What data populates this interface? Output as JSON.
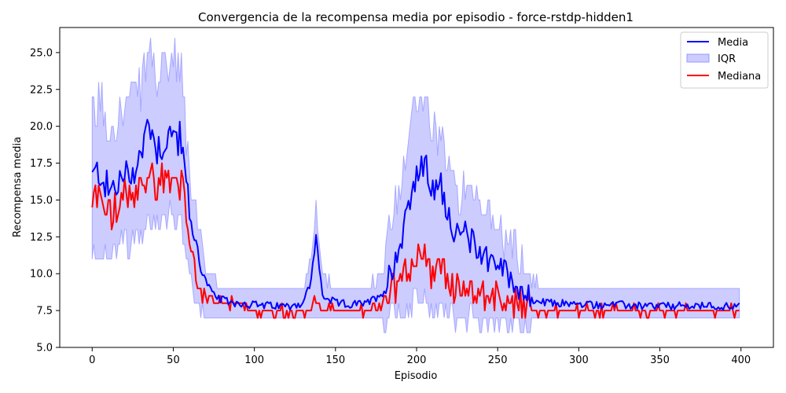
{
  "chart_data": {
    "type": "line",
    "title": "Convergencia de la recompensa media por episodio - force-rstdp-hidden1",
    "xlabel": "Episodio",
    "ylabel": "Recompensa media",
    "xlim": [
      -20,
      420
    ],
    "ylim": [
      5.0,
      26.7
    ],
    "x_ticks": [
      0,
      50,
      100,
      150,
      200,
      250,
      300,
      350,
      400
    ],
    "y_ticks": [
      5.0,
      7.5,
      10.0,
      12.5,
      15.0,
      17.5,
      20.0,
      22.5,
      25.0
    ],
    "grid": false,
    "legend_position": "top-right",
    "colors": {
      "media": "#0000ff",
      "iqr": "#ccccff",
      "iqr_edge": "#9999ff",
      "mediana": "#ff0000"
    },
    "legend": [
      "Media",
      "IQR",
      "Mediana"
    ],
    "keyframes": {
      "episodes": [
        0,
        5,
        10,
        15,
        20,
        25,
        30,
        35,
        40,
        45,
        50,
        55,
        60,
        65,
        70,
        75,
        80,
        90,
        100,
        110,
        120,
        130,
        135,
        138,
        142,
        150,
        160,
        170,
        180,
        185,
        190,
        195,
        200,
        205,
        210,
        215,
        220,
        225,
        230,
        235,
        240,
        245,
        250,
        255,
        260,
        265,
        270,
        280,
        290,
        300,
        320,
        340,
        360,
        380,
        400
      ],
      "media": [
        16.5,
        17.0,
        15.5,
        16.0,
        16.5,
        17.0,
        18.0,
        20.5,
        18.5,
        19.0,
        19.5,
        19.0,
        14.0,
        11.5,
        9.5,
        8.5,
        8.2,
        8.0,
        7.9,
        7.8,
        7.8,
        8.0,
        9.5,
        12.5,
        8.5,
        8.0,
        7.9,
        8.0,
        8.8,
        10.5,
        12.0,
        15.0,
        16.5,
        17.5,
        15.5,
        16.0,
        14.0,
        12.5,
        12.8,
        12.0,
        11.5,
        11.0,
        10.8,
        10.0,
        9.5,
        8.8,
        8.2,
        8.0,
        8.0,
        7.9,
        7.9,
        7.8,
        7.8,
        7.8,
        7.8
      ],
      "mediana": [
        15.0,
        15.5,
        14.0,
        14.5,
        15.0,
        15.0,
        15.5,
        17.0,
        16.0,
        16.5,
        17.0,
        16.0,
        11.5,
        9.5,
        8.5,
        8.0,
        8.0,
        8.0,
        7.5,
        7.5,
        7.5,
        7.5,
        7.5,
        8.5,
        7.5,
        7.5,
        7.5,
        7.5,
        8.0,
        9.0,
        9.5,
        10.5,
        11.0,
        11.0,
        10.0,
        10.5,
        9.5,
        9.0,
        9.0,
        9.0,
        8.5,
        8.5,
        8.5,
        8.0,
        8.0,
        8.0,
        7.5,
        7.5,
        7.5,
        7.5,
        7.5,
        7.5,
        7.5,
        7.5,
        7.5
      ],
      "iqr_low": [
        12.0,
        13.0,
        12.5,
        12.5,
        13.0,
        13.0,
        13.5,
        15.0,
        14.5,
        15.0,
        15.0,
        14.5,
        10.5,
        8.5,
        7.5,
        7.3,
        7.2,
        7.0,
        7.0,
        7.0,
        7.0,
        7.0,
        7.0,
        7.5,
        7.0,
        7.0,
        7.0,
        7.0,
        7.2,
        7.8,
        8.0,
        8.5,
        9.0,
        9.0,
        8.5,
        8.5,
        8.0,
        8.0,
        8.0,
        7.8,
        7.5,
        7.5,
        7.5,
        7.5,
        7.2,
        7.0,
        7.0,
        7.0,
        7.0,
        7.0,
        7.0,
        7.0,
        7.0,
        7.0,
        7.0
      ],
      "iqr_high": [
        18.5,
        20.0,
        18.0,
        19.0,
        19.5,
        20.0,
        21.0,
        23.5,
        21.5,
        22.0,
        22.5,
        21.5,
        15.5,
        12.5,
        10.0,
        9.0,
        8.8,
        8.5,
        8.5,
        8.5,
        8.5,
        8.5,
        10.5,
        14.0,
        9.5,
        8.8,
        8.5,
        8.5,
        10.0,
        12.5,
        15.0,
        18.5,
        20.5,
        21.0,
        18.0,
        18.5,
        16.0,
        14.0,
        14.5,
        13.5,
        13.0,
        12.5,
        12.0,
        11.0,
        10.5,
        9.5,
        9.0,
        8.8,
        8.8,
        8.5,
        8.5,
        8.5,
        8.5,
        8.5,
        8.5
      ]
    }
  }
}
